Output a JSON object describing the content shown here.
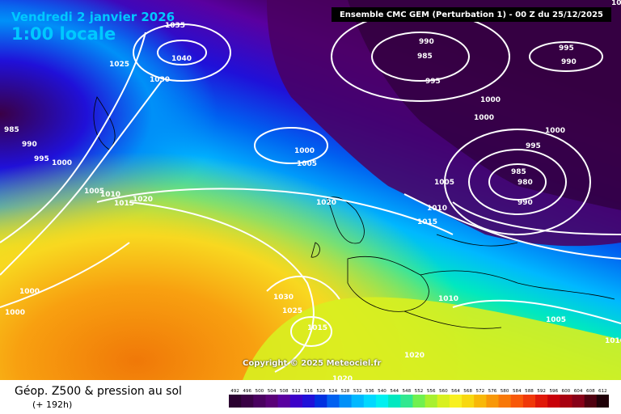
{
  "header": {
    "date": "Vendredi 2 janvier 2026",
    "time": "1:00 locale",
    "run": "Ensemble CMC GEM  (Perturbation 1)  -  00 Z du 25/12/2025"
  },
  "copyright": "Copyright © 2025 Meteociel.fr",
  "caption": {
    "title": "Géop. Z500 & pression au sol",
    "subtitle": "(+ 192h)"
  },
  "isobars": [
    "1035",
    "1040",
    "1025",
    "1030",
    "985",
    "990",
    "995",
    "1000",
    "1005",
    "1010",
    "1015",
    "1020",
    "1000",
    "1005",
    "1020",
    "1015",
    "1010",
    "1005",
    "1030",
    "1025",
    "1015",
    "1020",
    "1020",
    "1000",
    "1000",
    "990",
    "985",
    "995",
    "1000",
    "1000",
    "995",
    "990",
    "1000",
    "995",
    "985",
    "980",
    "990",
    "1005",
    "1010",
    "1005",
    "1010"
  ],
  "scale": {
    "labels": [
      "492",
      "496",
      "500",
      "504",
      "508",
      "512",
      "516",
      "520",
      "524",
      "528",
      "532",
      "536",
      "540",
      "544",
      "548",
      "552",
      "556",
      "560",
      "564",
      "568",
      "572",
      "576",
      "580",
      "584",
      "588",
      "592",
      "596",
      "600",
      "604",
      "608",
      "612"
    ],
    "colors": [
      "#2a0030",
      "#3a0045",
      "#4a0060",
      "#5a0078",
      "#5a00a0",
      "#3c00c8",
      "#2010d8",
      "#0030e0",
      "#0060f0",
      "#0090f8",
      "#00b8ff",
      "#00d8ff",
      "#00f0f0",
      "#00e8c0",
      "#30e890",
      "#70f050",
      "#a8f030",
      "#d8f020",
      "#f8f020",
      "#f8d810",
      "#f8b808",
      "#f89808",
      "#f87808",
      "#f85808",
      "#f03808",
      "#e01808",
      "#c80008",
      "#a80010",
      "#880018",
      "#500010",
      "#200008"
    ]
  }
}
